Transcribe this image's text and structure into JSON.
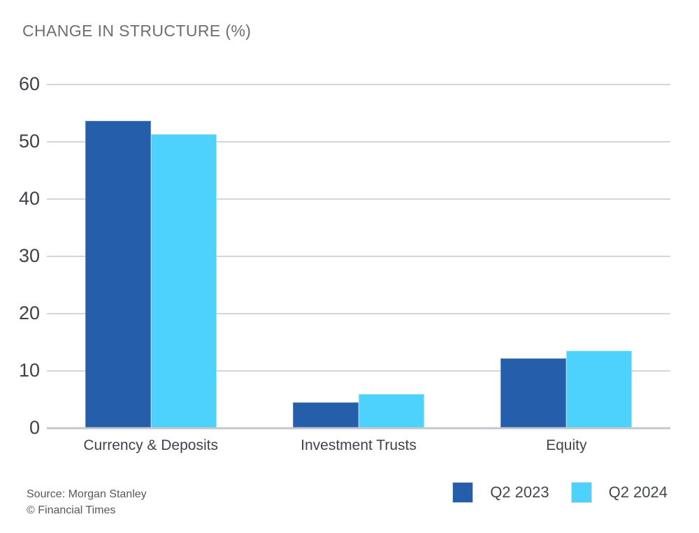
{
  "title": "CHANGE IN STRUCTURE (%)",
  "footer": {
    "source": "Source: Morgan Stanley",
    "copyright": "© Financial Times"
  },
  "colors": {
    "q2_2023": "#255EAA",
    "q2_2023_edge": "#5E85C2",
    "q2_2024": "#4DD2FD",
    "q2_2024_edge": "#9BE4FE",
    "gridline": "#D3D6DA",
    "baseline": "#C4C7CB",
    "title_text": "#6B6F76",
    "axis_text": "#3E4248"
  },
  "chart_data": {
    "type": "bar",
    "title": "CHANGE IN STRUCTURE (%)",
    "categories": [
      "Currency & Deposits",
      "Investment Trusts",
      "Equity"
    ],
    "series": [
      {
        "name": "Q2 2023",
        "color": "#255EAA",
        "edge": "#5E85C2",
        "values": [
          53.6,
          4.5,
          12.2
        ]
      },
      {
        "name": "Q2 2024",
        "color": "#4DD2FD",
        "edge": "#9BE4FE",
        "values": [
          51.4,
          6.0,
          13.5
        ]
      }
    ],
    "xlabel": "",
    "ylabel": "",
    "ylim": [
      0,
      60
    ],
    "yticks": [
      0,
      10,
      20,
      30,
      40,
      50,
      60
    ],
    "grid": true,
    "legend_position": "bottom-right"
  }
}
